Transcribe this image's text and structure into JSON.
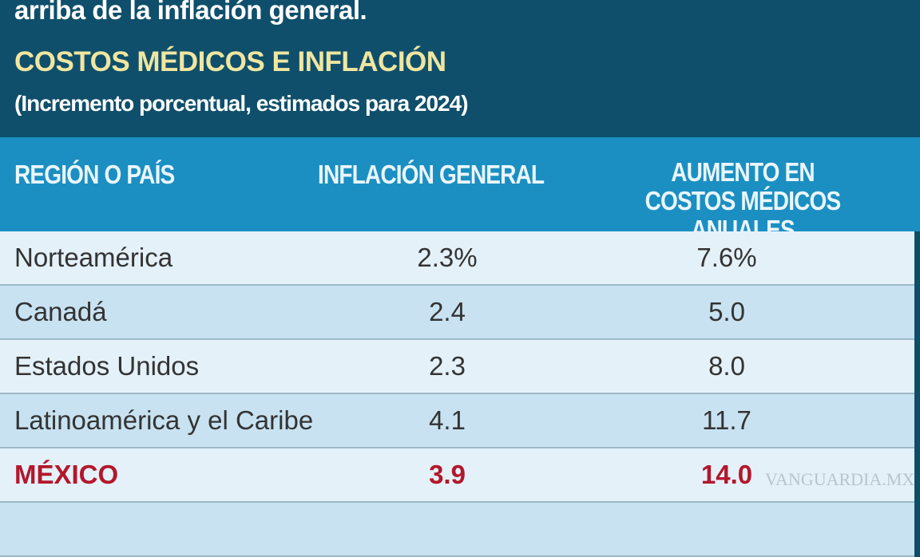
{
  "header": {
    "lead": "arriba de la inflación general.",
    "title": "COSTOS MÉDICOS E INFLACIÓN",
    "subtitle": "(Incremento porcentual, estimados para 2024)"
  },
  "table": {
    "columns": [
      "REGIÓN O PAÍS",
      "INFLACIÓN GENERAL",
      "AUMENTO EN COSTOS MÉDICOS ANUALES"
    ],
    "rows": [
      {
        "region": "Norteamérica",
        "inflation": "2.3%",
        "medical": "7.6%"
      },
      {
        "region": "Canadá",
        "inflation": "2.4",
        "medical": "5.0"
      },
      {
        "region": "Estados Unidos",
        "inflation": "2.3",
        "medical": "8.0"
      },
      {
        "region": "Latinoamérica y el Caribe",
        "inflation": "4.1",
        "medical": "11.7"
      },
      {
        "region": "MÉXICO",
        "inflation": "3.9",
        "medical": "14.0"
      }
    ],
    "highlight_color": "#b3172b"
  },
  "watermark": "VANGUARDIA.MX"
}
